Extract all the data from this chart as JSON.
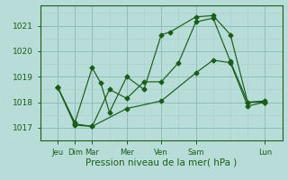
{
  "xlabel": "Pression niveau de la mer( hPa )",
  "xlim": [
    0,
    7.0
  ],
  "ylim": [
    1016.5,
    1021.8
  ],
  "yticks": [
    1017,
    1018,
    1019,
    1020,
    1021
  ],
  "day_labels": [
    "Jeu",
    "Dim",
    "Mar",
    "Mer",
    "Ven",
    "Sam",
    "Lun"
  ],
  "day_positions": [
    0.5,
    1.0,
    1.5,
    2.5,
    3.5,
    4.5,
    6.5
  ],
  "minor_x_positions": [
    0.5,
    1.0,
    1.5,
    2.0,
    2.5,
    3.0,
    3.5,
    4.0,
    4.5,
    5.0,
    5.5,
    6.0,
    6.5
  ],
  "bg_color": "#b8ddd8",
  "grid_major_color": "#90bfb8",
  "grid_minor_color": "#a8d0cc",
  "line_color": "#1a5c1a",
  "series1_x": [
    0.5,
    1.0,
    1.5,
    1.75,
    2.0,
    2.5,
    3.0,
    3.5,
    3.75,
    4.5,
    5.0,
    5.5,
    6.0,
    6.5
  ],
  "series1_y": [
    1018.6,
    1017.2,
    1019.35,
    1018.75,
    1017.6,
    1019.0,
    1018.5,
    1020.65,
    1020.75,
    1021.35,
    1021.4,
    1020.65,
    1018.0,
    1018.0
  ],
  "series2_x": [
    0.5,
    1.0,
    1.5,
    2.0,
    2.5,
    3.0,
    3.5,
    4.0,
    4.5,
    5.0,
    5.5,
    6.0,
    6.5
  ],
  "series2_y": [
    1018.6,
    1017.1,
    1017.05,
    1018.5,
    1018.15,
    1018.8,
    1018.8,
    1019.55,
    1021.15,
    1021.3,
    1019.6,
    1018.0,
    1018.05
  ],
  "series3_x": [
    0.5,
    1.0,
    1.5,
    2.5,
    3.5,
    4.5,
    5.0,
    5.5,
    6.0,
    6.5
  ],
  "series3_y": [
    1018.6,
    1017.15,
    1017.05,
    1017.75,
    1018.05,
    1019.15,
    1019.65,
    1019.55,
    1017.85,
    1018.0
  ]
}
